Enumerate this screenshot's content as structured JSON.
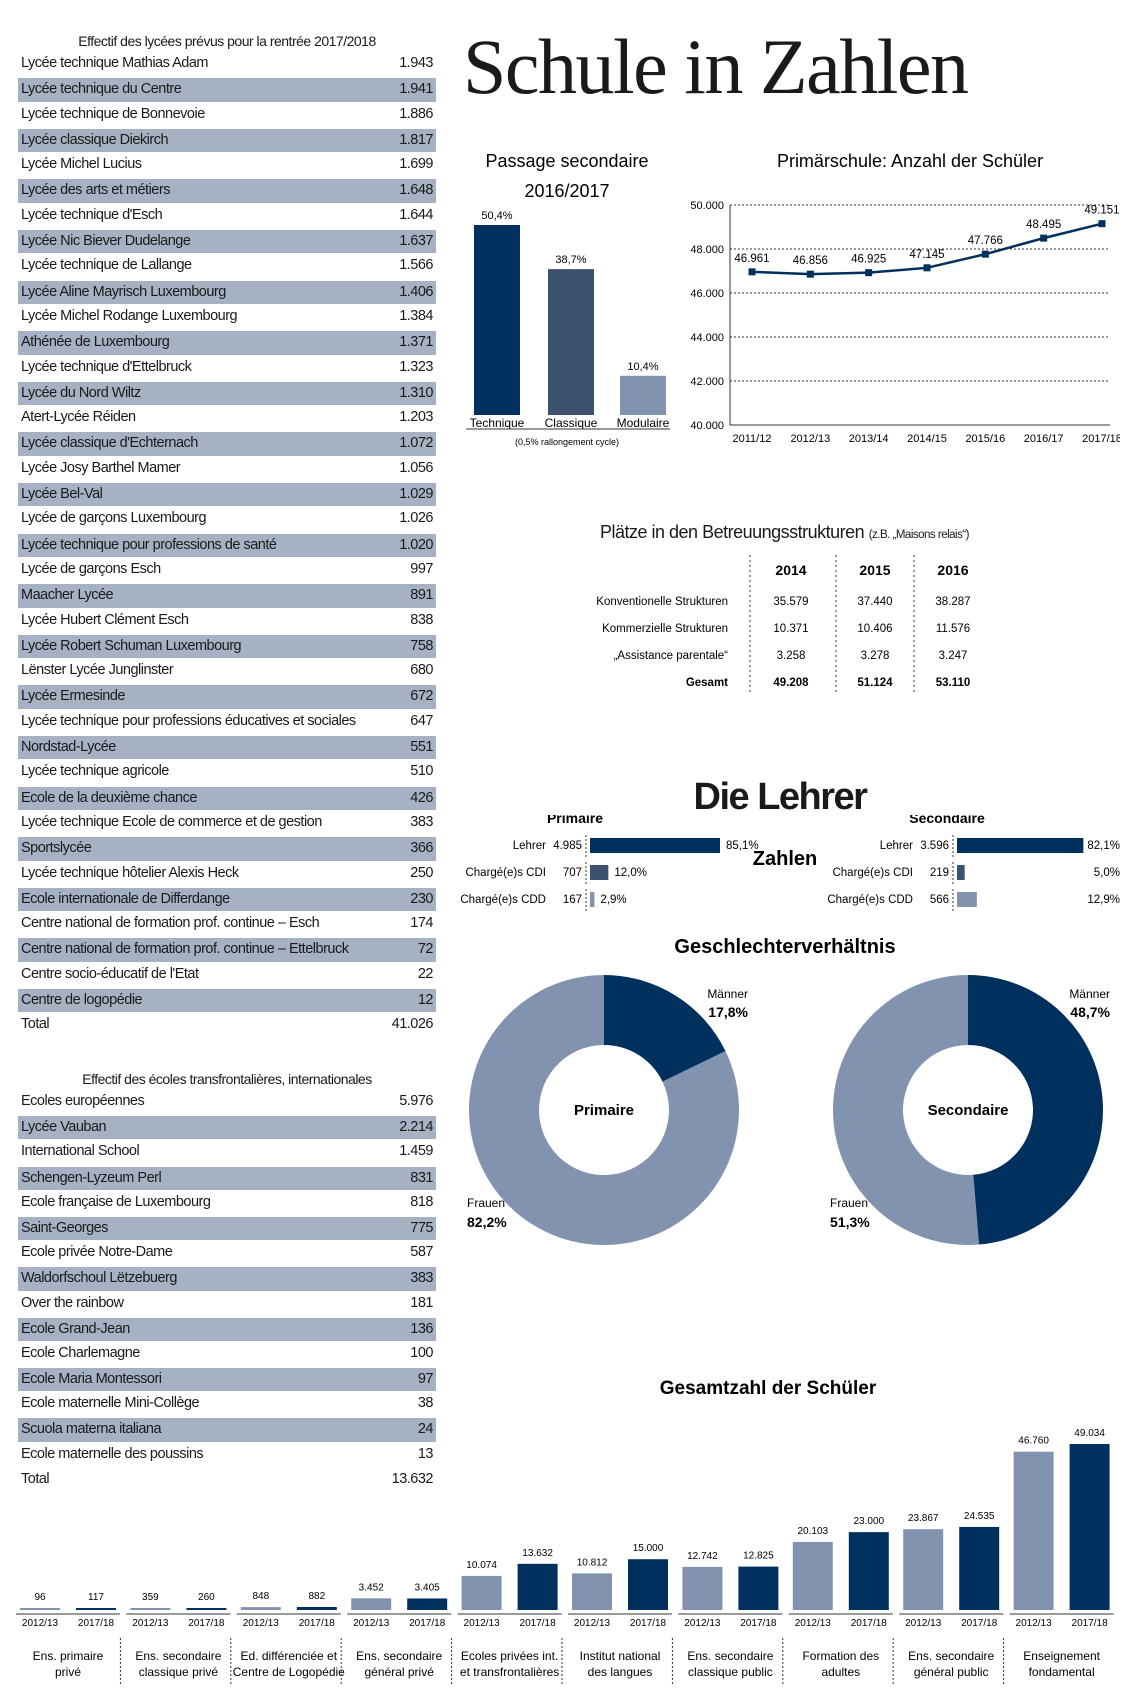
{
  "title": "Schule in Zahlen",
  "schools_table": {
    "heading": "Effectif des lycées prévus pour la rentrée 2017/2018",
    "rows": [
      {
        "name": "Lycée technique Mathias Adam",
        "value": "1.943"
      },
      {
        "name": "Lycée technique du Centre",
        "value": "1.941"
      },
      {
        "name": "Lycée technique de Bonnevoie",
        "value": "1.886"
      },
      {
        "name": "Lycée classique Diekirch",
        "value": "1.817"
      },
      {
        "name": "Lycée Michel Lucius",
        "value": "1.699"
      },
      {
        "name": "Lycée des arts et métiers",
        "value": "1.648"
      },
      {
        "name": "Lycée technique d'Esch",
        "value": "1.644"
      },
      {
        "name": "Lycée Nic Biever Dudelange",
        "value": "1.637"
      },
      {
        "name": "Lycée technique de Lallange",
        "value": "1.566"
      },
      {
        "name": "Lycée Aline Mayrisch Luxembourg",
        "value": "1.406"
      },
      {
        "name": "Lycée Michel Rodange Luxembourg",
        "value": "1.384"
      },
      {
        "name": "Athénée de Luxembourg",
        "value": "1.371"
      },
      {
        "name": "Lycée technique d'Ettelbruck",
        "value": "1.323"
      },
      {
        "name": "Lycée du Nord Wiltz",
        "value": "1.310"
      },
      {
        "name": "Atert-Lycée Réiden",
        "value": "1.203"
      },
      {
        "name": "Lycée classique d'Echternach",
        "value": "1.072"
      },
      {
        "name": "Lycée Josy Barthel Mamer",
        "value": "1.056"
      },
      {
        "name": "Lycée Bel-Val",
        "value": "1.029"
      },
      {
        "name": "Lycée de garçons Luxembourg",
        "value": "1.026"
      },
      {
        "name": "Lycée technique pour professions de santé",
        "value": "1.020"
      },
      {
        "name": "Lycée de garçons Esch",
        "value": "997"
      },
      {
        "name": "Maacher Lycée",
        "value": "891"
      },
      {
        "name": "Lycée Hubert Clément Esch",
        "value": "838"
      },
      {
        "name": "Lycée Robert Schuman Luxembourg",
        "value": "758"
      },
      {
        "name": "Lënster Lycée Junglinster",
        "value": "680"
      },
      {
        "name": "Lycée Ermesinde",
        "value": "672"
      },
      {
        "name": "Lycée technique pour professions éducatives et sociales",
        "value": "647"
      },
      {
        "name": "Nordstad-Lycée",
        "value": "551"
      },
      {
        "name": "Lycée technique agricole",
        "value": "510"
      },
      {
        "name": "Ecole de la deuxième chance",
        "value": "426"
      },
      {
        "name": "Lycée technique Ecole de commerce et de gestion",
        "value": "383"
      },
      {
        "name": "Sportslycée",
        "value": "366"
      },
      {
        "name": "Lycée technique hôtelier Alexis Heck",
        "value": "250"
      },
      {
        "name": "Ecole internationale de Differdange",
        "value": "230"
      },
      {
        "name": "Centre national de formation prof. continue – Esch",
        "value": "174"
      },
      {
        "name": "Centre national de formation prof. continue – Ettelbruck",
        "value": "72"
      },
      {
        "name": "Centre socio-éducatif de l'Etat",
        "value": "22"
      },
      {
        "name": "Centre de logopédie",
        "value": "12"
      },
      {
        "name": "Total",
        "value": "41.026"
      }
    ]
  },
  "intl_table": {
    "heading": "Effectif des écoles transfrontalières, internationales",
    "rows": [
      {
        "name": "Ecoles européennes",
        "value": "5.976"
      },
      {
        "name": "Lycée Vauban",
        "value": "2.214"
      },
      {
        "name": "International School",
        "value": "1.459"
      },
      {
        "name": "Schengen-Lyzeum Perl",
        "value": "831"
      },
      {
        "name": "Ecole française de Luxembourg",
        "value": "818"
      },
      {
        "name": "Saint-Georges",
        "value": "775"
      },
      {
        "name": "Ecole privée Notre-Dame",
        "value": "587"
      },
      {
        "name": "Waldorfschoul Lëtzebuerg",
        "value": "383"
      },
      {
        "name": "Over the rainbow",
        "value": "181"
      },
      {
        "name": "Ecole Grand-Jean",
        "value": "136"
      },
      {
        "name": "Ecole Charlemagne",
        "value": "100"
      },
      {
        "name": "Ecole Maria Montessori",
        "value": "97"
      },
      {
        "name": "Ecole maternelle Mini-Collège",
        "value": "38"
      },
      {
        "name": "Scuola materna italiana",
        "value": "24"
      },
      {
        "name": "Ecole maternelle des poussins",
        "value": "13"
      },
      {
        "name": "Total",
        "value": "13.632"
      }
    ]
  },
  "colors": {
    "dark": "#00305e",
    "mid": "#3d5270",
    "light": "#8293b0",
    "row_alt": "#a6b2c3"
  },
  "passage": {
    "title_line1": "Passage secondaire",
    "title_line2": "2016/2017",
    "note": "(0,5% rallongement cycle)"
  },
  "care": {
    "title": "Plätze in den Betreuungsstrukturen",
    "subtitle": "(z.B. „Maisons relais“)",
    "years": [
      "2014",
      "2015",
      "2016"
    ],
    "rows": [
      {
        "label": "Konventionelle Strukturen",
        "values": [
          "35.579",
          "37.440",
          "38.287"
        ]
      },
      {
        "label": "Kommerzielle Strukturen",
        "values": [
          "10.371",
          "10.406",
          "11.576"
        ]
      },
      {
        "label": "„Assistance parentale“",
        "values": [
          "3.258",
          "3.278",
          "3.247"
        ]
      },
      {
        "label": "Gesamt",
        "values": [
          "49.208",
          "51.124",
          "53.110"
        ]
      }
    ]
  },
  "teachers": {
    "title": "Die Lehrer",
    "center_label": "Zahlen",
    "gender_title": "Geschlechterverhältnis",
    "primaire": {
      "label": "Primaire",
      "rows": [
        {
          "label": "Lehrer",
          "count": "4.985",
          "pct": "85,1%",
          "value": 85.1
        },
        {
          "label": "Chargé(e)s CDI",
          "count": "707",
          "pct": "12,0%",
          "value": 12.0
        },
        {
          "label": "Chargé(e)s CDD",
          "count": "167",
          "pct": "2,9%",
          "value": 2.9
        }
      ]
    },
    "secondaire": {
      "label": "Secondaire",
      "rows": [
        {
          "label": "Lehrer",
          "count": "3.596",
          "pct": "82,1%",
          "value": 82.1
        },
        {
          "label": "Chargé(e)s CDI",
          "count": "219",
          "pct": "5,0%",
          "value": 5.0
        },
        {
          "label": "Chargé(e)s CDD",
          "count": "566",
          "pct": "12,9%",
          "value": 12.9
        }
      ]
    }
  },
  "chart_data": [
    {
      "type": "bar",
      "title": "Passage secondaire 2016/2017",
      "categories": [
        "Technique",
        "Classique",
        "Modulaire"
      ],
      "values": [
        50.4,
        38.7,
        10.4
      ],
      "labels": [
        "50,4%",
        "38,7%",
        "10,4%"
      ],
      "colors": [
        "#00305e",
        "#3d5270",
        "#8293b0"
      ]
    },
    {
      "type": "line",
      "title": "Primärschule: Anzahl der Schüler",
      "x": [
        "2011/12",
        "2012/13",
        "2013/14",
        "2014/15",
        "2015/16",
        "2016/17",
        "2017/18"
      ],
      "values": [
        46961,
        46856,
        46925,
        47145,
        47766,
        48495,
        49151
      ],
      "labels": [
        "46.961",
        "46.856",
        "46.925",
        "47.145",
        "47.766",
        "48.495",
        "49.151"
      ],
      "ylim": [
        40000,
        50000
      ],
      "yticks": [
        40000,
        42000,
        44000,
        46000,
        48000,
        50000
      ],
      "ytick_labels": [
        "40.000",
        "42.000",
        "44.000",
        "46.000",
        "48.000",
        "50.000"
      ],
      "grid": true
    },
    {
      "type": "pie",
      "title": "Primaire",
      "categories": [
        "Männer",
        "Frauen"
      ],
      "values": [
        17.8,
        82.2
      ],
      "labels": [
        "17,8%",
        "82,2%"
      ]
    },
    {
      "type": "pie",
      "title": "Secondaire",
      "categories": [
        "Männer",
        "Frauen"
      ],
      "values": [
        48.7,
        51.3
      ],
      "labels": [
        "48,7%",
        "51,3%"
      ]
    },
    {
      "type": "bar",
      "title": "Gesamtzahl der Schüler",
      "categories": [
        "Ens. primaire privé",
        "Ens. secondaire classique privé",
        "Ed. différenciée et Centre de Logopédie",
        "Ens. secondaire général privé",
        "Ecoles privées int. et transfrontalières",
        "Institut national des langues",
        "Ens. secondaire classique public",
        "Formation des adultes",
        "Ens. secondaire général public",
        "Enseignement fondamental"
      ],
      "series": [
        {
          "name": "2012/13",
          "values": [
            96,
            359,
            848,
            3452,
            10074,
            10812,
            12742,
            20103,
            23867,
            46760
          ],
          "labels": [
            "96",
            "359",
            "848",
            "3.452",
            "10.074",
            "10.812",
            "12.742",
            "20.103",
            "23.867",
            "46.760"
          ]
        },
        {
          "name": "2017/18",
          "values": [
            117,
            260,
            882,
            3405,
            13632,
            15000,
            12825,
            23000,
            24535,
            49034
          ],
          "labels": [
            "117",
            "260",
            "882",
            "3.405",
            "13.632",
            "15.000",
            "12.825",
            "23.000",
            "24.535",
            "49.034"
          ]
        }
      ]
    }
  ]
}
